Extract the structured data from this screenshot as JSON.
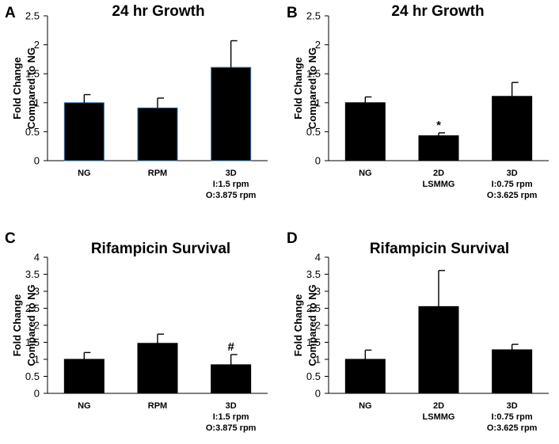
{
  "chart_data": [
    {
      "panel": "A",
      "type": "bar",
      "title": "24 hr Growth",
      "ylabel": [
        "Fold Change",
        "Compared to NG"
      ],
      "ylim": [
        0,
        2.5
      ],
      "yticks": [
        "0",
        "0.5",
        "1",
        "1.5",
        "2",
        "2.5"
      ],
      "categories": [
        [
          "NG"
        ],
        [
          "RPM"
        ],
        [
          "3D",
          "I:1.5 rpm",
          "O:3.875 rpm"
        ]
      ],
      "values": [
        1.0,
        0.91,
        1.61
      ],
      "errors": [
        0.14,
        0.17,
        0.46
      ],
      "annotations": [
        "",
        "",
        ""
      ],
      "bar_color": "#000000",
      "bar_edge_color": "#2e6da4"
    },
    {
      "panel": "B",
      "type": "bar",
      "title": "24 hr Growth",
      "ylabel": [
        "Fold Change",
        "Compared to NG"
      ],
      "ylim": [
        0,
        2.5
      ],
      "yticks": [
        "0",
        "0.5",
        "1",
        "1.5",
        "2",
        "2.5"
      ],
      "categories": [
        [
          "NG"
        ],
        [
          "2D",
          "LSMMG"
        ],
        [
          "3D",
          "I:0.75 rpm",
          "O:3.625 rpm"
        ]
      ],
      "values": [
        1.0,
        0.43,
        1.11
      ],
      "errors": [
        0.1,
        0.05,
        0.24
      ],
      "annotations": [
        "",
        "*",
        ""
      ],
      "bar_color": "#000000",
      "bar_edge_color": "#000000"
    },
    {
      "panel": "C",
      "type": "bar",
      "title": "Rifampicin Survival",
      "ylabel": [
        "Fold Change",
        "Compared to NG"
      ],
      "ylim": [
        0,
        4
      ],
      "yticks": [
        "0",
        "0.5",
        "1",
        "1.5",
        "2",
        "2.5",
        "3",
        "3.5",
        "4"
      ],
      "categories": [
        [
          "NG"
        ],
        [
          "RPM"
        ],
        [
          "3D",
          "I:1.5 rpm",
          "O:3.875 rpm"
        ]
      ],
      "values": [
        1.0,
        1.47,
        0.84
      ],
      "errors": [
        0.2,
        0.27,
        0.3
      ],
      "annotations": [
        "",
        "",
        "#"
      ],
      "bar_color": "#000000",
      "bar_edge_color": "#000000"
    },
    {
      "panel": "D",
      "type": "bar",
      "title": "Rifampicin Survival",
      "ylabel": [
        "Fold Change",
        "Compared to NG"
      ],
      "ylim": [
        0,
        4
      ],
      "yticks": [
        "0",
        "0.5",
        "1",
        "1.5",
        "2",
        "2.5",
        "3",
        "3.5",
        "4"
      ],
      "categories": [
        [
          "NG"
        ],
        [
          "2D",
          "LSMMG"
        ],
        [
          "3D",
          "I:0.75 rpm",
          "O:3.625 rpm"
        ]
      ],
      "values": [
        1.0,
        2.55,
        1.28
      ],
      "errors": [
        0.27,
        1.06,
        0.16
      ],
      "annotations": [
        "",
        "",
        ""
      ],
      "bar_color": "#000000",
      "bar_edge_color": "#000000"
    }
  ]
}
